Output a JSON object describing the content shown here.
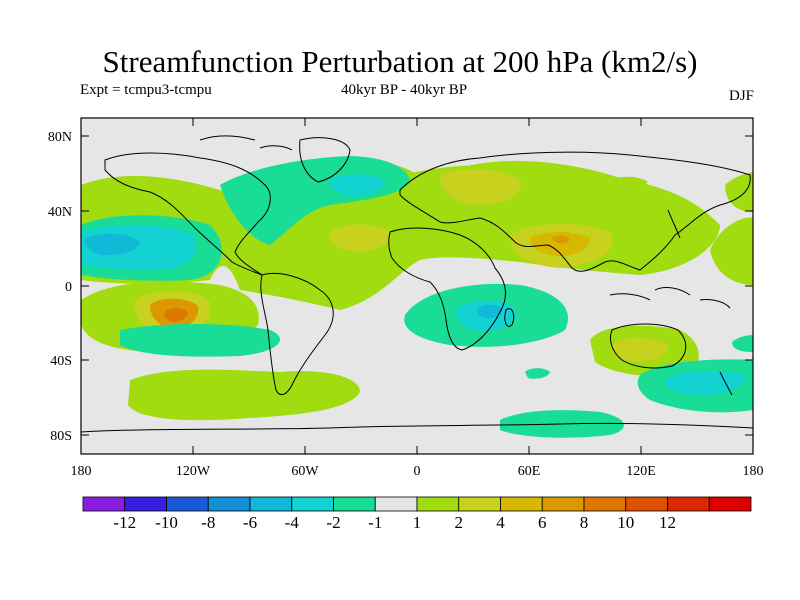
{
  "title": "Streamfunction Perturbation at 200 hPa (km2/s)",
  "expt": "Expt = tcmpu3-tcmpu",
  "period": "40kyr BP - 40kyr BP",
  "season": "DJF",
  "axes": {
    "y_ticks": [
      "80N",
      "40N",
      "0",
      "40S",
      "80S"
    ],
    "x_ticks": [
      "180",
      "120W",
      "60W",
      "0",
      "60E",
      "120E",
      "180"
    ]
  },
  "colorbar": {
    "colors": [
      "#8a1ee0",
      "#3a1ee0",
      "#1a5ad8",
      "#1490d8",
      "#12b8d8",
      "#12d2d2",
      "#19dc96",
      "#e6e6e6",
      "#a0dc10",
      "#c8d21e",
      "#d6b800",
      "#dc9800",
      "#dc7800",
      "#dc5000",
      "#dc2800",
      "#dc0000"
    ],
    "labels": [
      "-12",
      "-10",
      "-8",
      "-6",
      "-4",
      "-2",
      "-1",
      "1",
      "2",
      "4",
      "6",
      "8",
      "10",
      "12"
    ]
  },
  "chart_data": {
    "type": "map",
    "xlim": [
      -180,
      180
    ],
    "ylim": [
      -90,
      90
    ],
    "levels": [
      -12,
      -10,
      -8,
      -6,
      -4,
      -2,
      -1,
      1,
      2,
      4,
      6,
      8,
      10,
      12
    ]
  }
}
